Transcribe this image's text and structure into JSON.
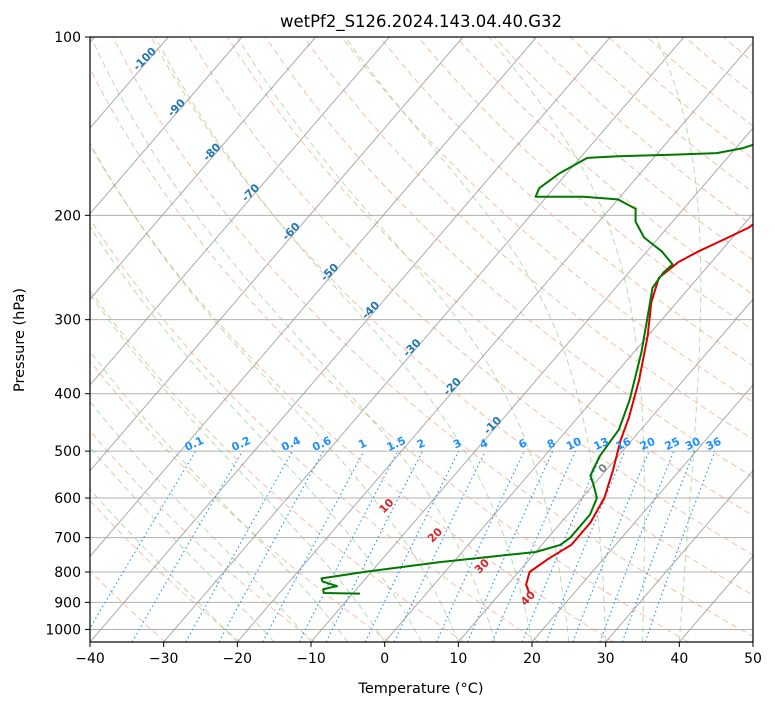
{
  "chart_data": {
    "type": "line",
    "title": "wetPf2_S126.2024.143.04.40.G32",
    "xlabel": "Temperature (°C)",
    "ylabel": "Pressure (hPa)",
    "xlim": [
      -40,
      50
    ],
    "ylim": [
      1050,
      100
    ],
    "y_scale": "log",
    "grid": true,
    "x_ticks": [
      -40,
      -30,
      -20,
      -10,
      0,
      10,
      20,
      30,
      40,
      50
    ],
    "y_ticks": [
      100,
      200,
      300,
      400,
      500,
      600,
      700,
      800,
      900,
      1000
    ],
    "series": [
      {
        "color": "#e00000",
        "points": [
          [
            14,
            870
          ],
          [
            12.5,
            840
          ],
          [
            11.5,
            800
          ],
          [
            12.5,
            760
          ],
          [
            14,
            720
          ],
          [
            14,
            660
          ],
          [
            13,
            600
          ],
          [
            11,
            540
          ],
          [
            8.5,
            480
          ],
          [
            7,
            440
          ],
          [
            4,
            380
          ],
          [
            0,
            320
          ],
          [
            -3.5,
            280
          ],
          [
            -5.3,
            255
          ],
          [
            -4.5,
            240
          ],
          [
            -3,
            230
          ],
          [
            -1,
            220
          ],
          [
            1,
            210
          ],
          [
            2,
            200
          ],
          [
            4,
            190
          ],
          [
            6.5,
            180
          ],
          [
            9,
            170
          ],
          [
            10.5,
            160
          ],
          [
            11.5,
            150
          ],
          [
            12,
            140
          ],
          [
            12,
            130
          ],
          [
            12,
            120
          ],
          [
            11.5,
            115
          ],
          [
            11,
            110
          ],
          [
            10.5,
            105
          ],
          [
            10,
            100
          ]
        ]
      },
      {
        "color": "#007800",
        "points": [
          [
            -9,
            870
          ],
          [
            -14,
            868
          ],
          [
            -14.5,
            855
          ],
          [
            -13,
            845
          ],
          [
            -15.5,
            830
          ],
          [
            -16,
            820
          ],
          [
            -14,
            812
          ],
          [
            -11,
            800
          ],
          [
            -8,
            790
          ],
          [
            -2,
            770
          ],
          [
            4,
            755
          ],
          [
            10,
            740
          ],
          [
            12.5,
            720
          ],
          [
            13,
            700
          ],
          [
            13,
            640
          ],
          [
            12,
            600
          ],
          [
            10,
            570
          ],
          [
            8.5,
            550
          ],
          [
            7.5,
            510
          ],
          [
            7,
            460
          ],
          [
            5,
            410
          ],
          [
            1,
            340
          ],
          [
            -2,
            300
          ],
          [
            -5,
            265
          ],
          [
            -5.3,
            250
          ],
          [
            -5,
            242
          ],
          [
            -8,
            230
          ],
          [
            -12,
            218
          ],
          [
            -15,
            205
          ],
          [
            -16.5,
            195
          ],
          [
            -20,
            188
          ],
          [
            -25,
            186
          ],
          [
            -31.5,
            186
          ],
          [
            -32,
            180
          ],
          [
            -31,
            170
          ],
          [
            -29,
            160
          ],
          [
            -25,
            159
          ],
          [
            -18,
            158
          ],
          [
            -12,
            157
          ],
          [
            -9,
            154
          ],
          [
            -7,
            150
          ],
          [
            -6,
            145
          ],
          [
            -6,
            140
          ],
          [
            -7.5,
            135
          ],
          [
            -8.5,
            130
          ],
          [
            -8.5,
            125
          ],
          [
            -7.5,
            120
          ],
          [
            -6,
            115
          ],
          [
            -4,
            110
          ],
          [
            -2,
            105
          ],
          [
            0,
            100
          ]
        ]
      }
    ],
    "mixing_ratio_labels": [
      "0.1",
      "0.2",
      "0.4",
      "0.6",
      "1",
      "1.5",
      "2",
      "3",
      "4",
      "6",
      "8",
      "10",
      "13",
      "16",
      "20",
      "25",
      "30",
      "36"
    ],
    "dry_adiabat_labels": [
      "-100",
      "-90",
      "-80",
      "-70",
      "-60",
      "-50",
      "-40",
      "-30",
      "-20",
      "-10"
    ],
    "moist_adiabat_labels": [
      "10",
      "20",
      "30",
      "40"
    ],
    "zero_label": "0"
  }
}
